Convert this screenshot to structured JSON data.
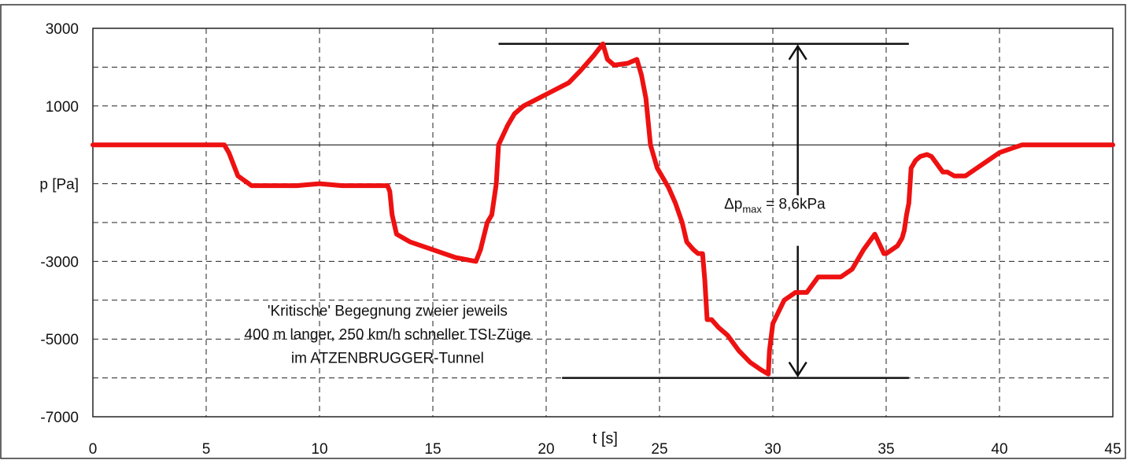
{
  "chart_data": {
    "type": "line",
    "xlabel": "t [s]",
    "ylabel": "p [Pa]",
    "xlim": [
      0,
      45
    ],
    "ylim": [
      -7000,
      3000
    ],
    "x_ticks": [
      0,
      5,
      10,
      15,
      20,
      25,
      30,
      35,
      40,
      45
    ],
    "y_tick_labels": [
      {
        "value": 3000,
        "label": "3000"
      },
      {
        "value": 1000,
        "label": "1000"
      },
      {
        "value": -1000,
        "label": "p [Pa]"
      },
      {
        "value": -3000,
        "label": "-3000"
      },
      {
        "value": -5000,
        "label": "-5000"
      },
      {
        "value": -7000,
        "label": "-7000"
      }
    ],
    "grid": true,
    "series": [
      {
        "color": "#ee1111",
        "x": [
          0,
          5.8,
          6.0,
          6.4,
          7.0,
          9.0,
          10.0,
          11.0,
          13.0,
          13.1,
          13.2,
          13.4,
          14.0,
          15.0,
          16.0,
          16.9,
          17.1,
          17.4,
          17.6,
          17.8,
          17.9,
          18.3,
          18.6,
          19.0,
          20.0,
          21.0,
          21.5,
          22.1,
          22.5,
          22.7,
          23.0,
          23.6,
          24.0,
          24.2,
          24.4,
          24.6,
          24.9,
          25.4,
          25.7,
          26.0,
          26.2,
          26.5,
          26.7,
          26.9,
          27.0,
          27.1,
          27.3,
          27.6,
          28.0,
          28.5,
          29.0,
          29.5,
          29.8,
          29.85,
          30.0,
          30.5,
          31.0,
          31.5,
          32.0,
          32.5,
          33.0,
          33.5,
          34.0,
          34.5,
          34.9,
          35.0,
          35.5,
          35.7,
          35.8,
          35.9,
          36.0,
          36.1,
          36.3,
          36.5,
          36.8,
          37.0,
          37.5,
          37.7,
          38.0,
          38.5,
          39.0,
          39.5,
          40.0,
          40.5,
          41.0,
          41.2,
          41.3,
          45.0
        ],
        "y": [
          0,
          0,
          -200,
          -800,
          -1050,
          -1050,
          -1000,
          -1050,
          -1050,
          -1200,
          -1800,
          -2300,
          -2500,
          -2700,
          -2900,
          -3000,
          -2700,
          -2000,
          -1800,
          -1000,
          0,
          500,
          800,
          1000,
          1300,
          1600,
          1900,
          2300,
          2600,
          2200,
          2050,
          2100,
          2200,
          1800,
          1200,
          0,
          -600,
          -1100,
          -1500,
          -2000,
          -2500,
          -2700,
          -2800,
          -2800,
          -3500,
          -4500,
          -4500,
          -4700,
          -4900,
          -5300,
          -5600,
          -5800,
          -5900,
          -5300,
          -4600,
          -4000,
          -3800,
          -3800,
          -3400,
          -3400,
          -3400,
          -3200,
          -2700,
          -2300,
          -2800,
          -2800,
          -2600,
          -2400,
          -2200,
          -1800,
          -1500,
          -600,
          -400,
          -300,
          -250,
          -300,
          -700,
          -700,
          -800,
          -800,
          -600,
          -400,
          -200,
          -100,
          0,
          0,
          0,
          0
        ]
      }
    ],
    "annotations": {
      "delta_prefix": "Δp",
      "delta_subscript": "max",
      "delta_suffix": " = 8,6kPa",
      "max_line_y": 2600,
      "min_line_y": -6000,
      "note_lines": [
        "'Kritische' Begegnung zweier jeweils",
        "400 m langer, 250 km/h schneller TSI-Züge",
        "im ATZENBRUGGER-Tunnel"
      ]
    }
  }
}
